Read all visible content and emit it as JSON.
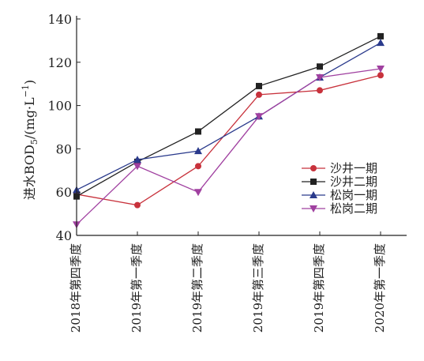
{
  "chart_data": {
    "type": "line",
    "title": "",
    "xlabel": "",
    "ylabel_main": "进水BOD",
    "ylabel_sub": "5",
    "ylabel_unit": "/(mg·L",
    "ylabel_sup": "−1",
    "ylabel_close": ")",
    "ylim": [
      40,
      140
    ],
    "yticks": [
      40,
      60,
      80,
      100,
      120,
      140
    ],
    "categories": [
      "2018年第四季度",
      "2019年第一季度",
      "2019年第二季度",
      "2019年第三季度",
      "2019年第四季度",
      "2020年第一季度"
    ],
    "legend_position": "right",
    "series": [
      {
        "name": "沙井一期",
        "marker": "circle",
        "color": "#c8323c",
        "values": [
          59,
          54,
          72,
          105,
          107,
          114
        ]
      },
      {
        "name": "沙井二期",
        "marker": "square",
        "color": "#222222",
        "values": [
          58,
          74,
          88,
          109,
          118,
          132
        ]
      },
      {
        "name": "松岗一期",
        "marker": "triangle-up",
        "color": "#2a3a8c",
        "values": [
          61,
          75,
          79,
          95,
          113,
          129
        ]
      },
      {
        "name": "松岗二期",
        "marker": "triangle-down",
        "color": "#a040a0",
        "values": [
          45,
          72,
          60,
          95,
          113,
          117
        ]
      }
    ]
  }
}
